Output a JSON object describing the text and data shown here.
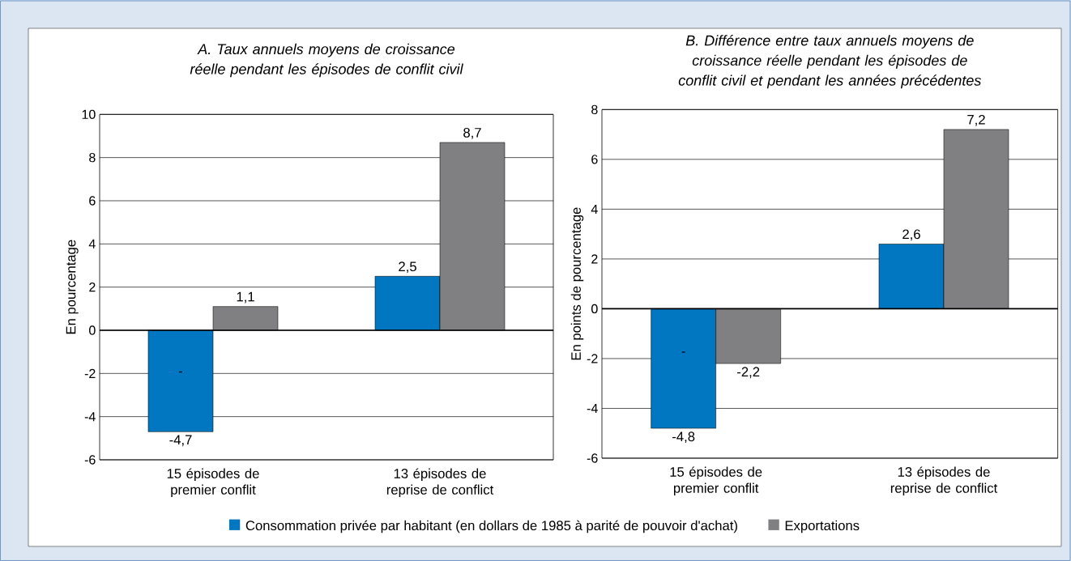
{
  "chart_data": [
    {
      "type": "bar",
      "title": "A. Taux annuels moyens de croissance réelle pendant les épisodes de conflit civil",
      "ylabel": "En pourcentage",
      "categories": [
        "15 épisodes de premier conflit",
        "13 épisodes de reprise de conflict"
      ],
      "series": [
        {
          "name": "Consommation privée par habitant (en dollars de 1985 à parité de pouvoir d'achat)",
          "color": "#0077c0",
          "values": [
            -4.7,
            2.5
          ],
          "value_labels": [
            "-4,7",
            "2,5"
          ]
        },
        {
          "name": "Exportations",
          "color": "#808083",
          "values": [
            1.1,
            8.7
          ],
          "value_labels": [
            "1,1",
            "8,7"
          ]
        }
      ],
      "ylim": [
        -6,
        10
      ],
      "yticks": [
        -6,
        -4,
        -2,
        0,
        2,
        4,
        6,
        8,
        10
      ],
      "grid": "y",
      "legend": "bottom",
      "annotations": [
        {
          "text": "-",
          "x": "15 épisodes de premier conflit",
          "y": -2
        }
      ]
    },
    {
      "type": "bar",
      "title": "B. Différence entre taux annuels moyens de croissance réelle pendant les épisodes de conflit civil et pendant les années précédentes",
      "ylabel": "En points de pourcentage",
      "categories": [
        "15 épisodes de premier conflit",
        "13 épisodes de reprise de conflict"
      ],
      "series": [
        {
          "color": "#0077c0",
          "values": [
            -4.8,
            2.6
          ],
          "value_labels": [
            "-4,8",
            "2,6"
          ]
        },
        {
          "color": "#808083",
          "values": [
            -2.2,
            7.2
          ],
          "value_labels": [
            "-2,2",
            "7,2"
          ]
        }
      ],
      "ylim": [
        -6,
        8
      ],
      "yticks": [
        -6,
        -4,
        -2,
        0,
        2,
        4,
        6,
        8
      ],
      "grid": "y",
      "annotations": [
        {
          "text": "-",
          "x": "15 épisodes de premier conflit",
          "y": -1.8
        }
      ]
    }
  ]
}
